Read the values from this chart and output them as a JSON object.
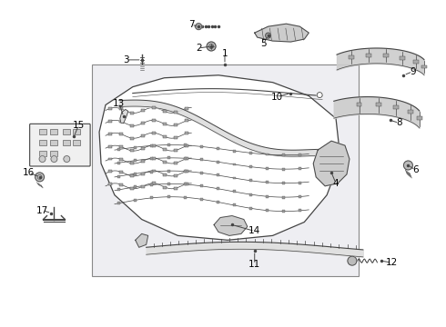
{
  "bg_color": "#ffffff",
  "box_color": "#e8e8f0",
  "line_color": "#444444",
  "part_fill": "#f0f0f0",
  "dark_fill": "#cccccc",
  "figsize": [
    4.9,
    3.6
  ],
  "dpi": 100
}
